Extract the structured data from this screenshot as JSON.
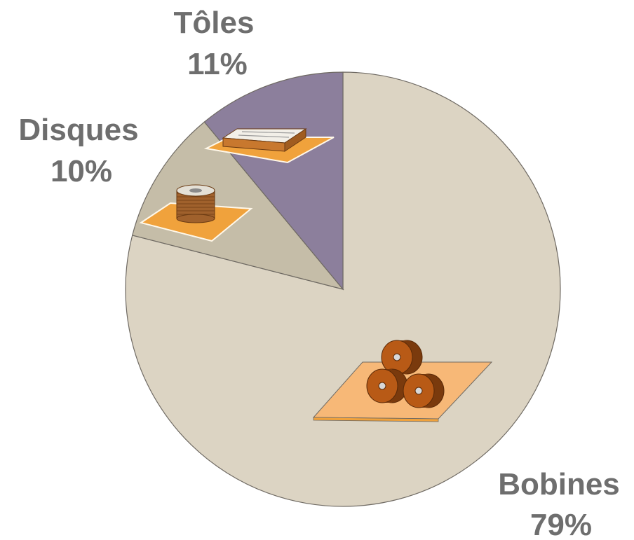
{
  "chart_data": {
    "type": "pie",
    "title": "",
    "slices": [
      {
        "label": "Bobines",
        "value": 79,
        "value_label": "79%",
        "color": "#dcd4c3",
        "icon": "coils-on-pallet-icon"
      },
      {
        "label": "Disques",
        "value": 10,
        "value_label": "10%",
        "color": "#c5bda8",
        "icon": "disc-stack-on-pallet-icon"
      },
      {
        "label": "Tôles",
        "value": 11,
        "value_label": "11%",
        "color": "#8c7f9c",
        "icon": "sheet-stack-on-pallet-icon"
      }
    ],
    "start_angle": "12 o'clock",
    "direction": "clockwise",
    "legend": "none"
  },
  "colors": {
    "label_text": "#6e6e6e",
    "pallet": "#f0a23c",
    "pallet_light": "#f7b877",
    "coil": "#b85a16",
    "coil_dark": "#7a3a0d",
    "outline": "#6f6a63"
  }
}
